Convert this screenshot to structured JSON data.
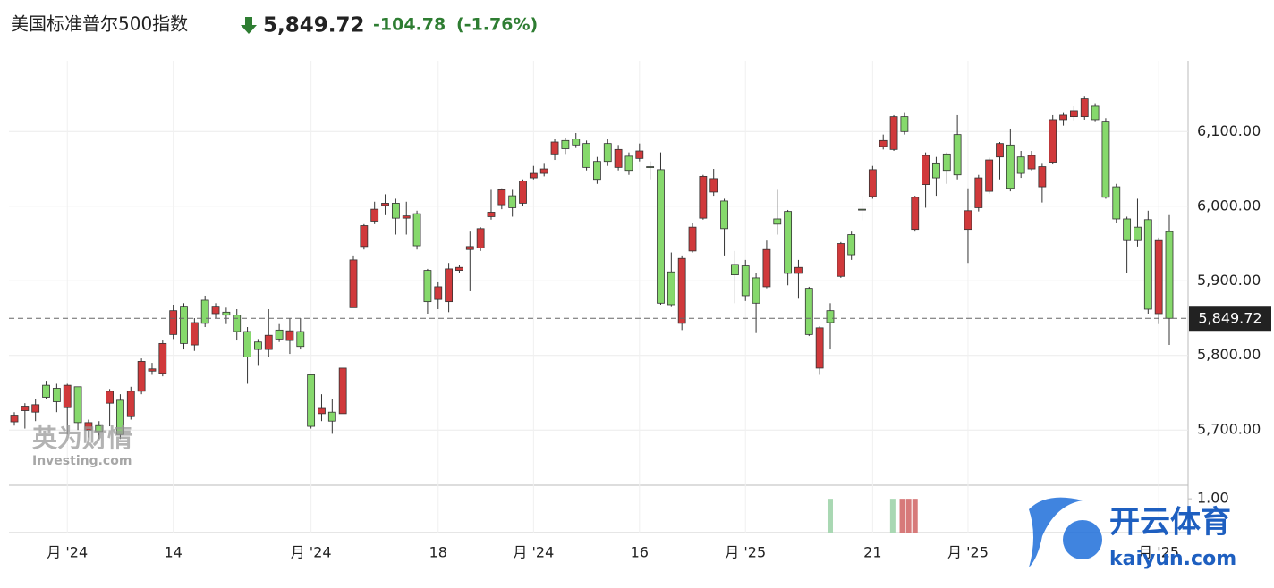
{
  "chart_data": [
    {
      "type": "candlestick",
      "title": "美国标准普尔500指数",
      "last": {
        "value": 5849.72,
        "label": "5,849.72"
      },
      "change": -104.78,
      "change_percent": {
        "value": -1.76,
        "label": "(-1.76%)"
      },
      "up_color": "#d0393b",
      "down_color": "#86d96c",
      "ylim": [
        5626,
        6195
      ],
      "yticks": [
        {
          "value": 5700,
          "label": "5,700.00"
        },
        {
          "value": 5800,
          "label": "5,800.00"
        },
        {
          "value": 5900,
          "label": "5,900.00"
        },
        {
          "value": 6000,
          "label": "6,000.00"
        },
        {
          "value": 6100,
          "label": "6,100.00"
        }
      ],
      "xticks": [
        {
          "value": 5,
          "label": "月 '24"
        },
        {
          "value": 15,
          "label": "14"
        },
        {
          "value": 28,
          "label": "月 '24"
        },
        {
          "value": 40,
          "label": "18"
        },
        {
          "value": 49,
          "label": "月 '24"
        },
        {
          "value": 59,
          "label": "16"
        },
        {
          "value": 69,
          "label": "月 '25"
        },
        {
          "value": 81,
          "label": "21"
        },
        {
          "value": 90,
          "label": "月 '25"
        },
        {
          "value": 108,
          "label": "月 '25"
        }
      ],
      "grid": true,
      "open": [
        5711,
        5726,
        5724,
        5760,
        5756,
        5730,
        5758,
        5700,
        5706,
        5736,
        5740,
        5718,
        5752,
        5779,
        5776,
        5828,
        5866,
        5814,
        5874,
        5856,
        5858,
        5854,
        5832,
        5818,
        5808,
        5834,
        5820,
        5832,
        5774,
        5722,
        5724,
        5722,
        5864,
        5946,
        5980,
        6001,
        6004,
        5984,
        5990,
        5914,
        5875,
        5872,
        5914,
        5942,
        5944,
        5986,
        6002,
        6014,
        6004,
        6038,
        6044,
        6070,
        6088,
        6090,
        6084,
        6060,
        6084,
        6052,
        6067,
        6064,
        6053,
        6049,
        5912,
        5843,
        5940,
        5984,
        6019,
        6007,
        5922,
        5920,
        5904,
        5892,
        5983,
        5993,
        5910,
        5890,
        5783,
        5860,
        5906,
        5962,
        5996,
        6013,
        6080,
        6076,
        6120,
        5969,
        6029,
        6058,
        6070,
        6096,
        5969,
        5998,
        6020,
        6066,
        6082,
        6066,
        6050,
        6026,
        6059,
        6116,
        6120,
        6120,
        6134,
        6114,
        6026,
        5983,
        5972,
        5982,
        5856,
        5966
      ],
      "high": [
        5724,
        5736,
        5742,
        5766,
        5762,
        5762,
        5758,
        5714,
        5712,
        5755,
        5748,
        5758,
        5796,
        5790,
        5820,
        5868,
        5870,
        5850,
        5880,
        5870,
        5864,
        5862,
        5838,
        5822,
        5862,
        5842,
        5850,
        5850,
        5774,
        5748,
        5741,
        5783,
        5934,
        5976,
        6006,
        6016,
        6010,
        6006,
        5994,
        5916,
        5898,
        5924,
        5921,
        5966,
        5972,
        6022,
        6024,
        6022,
        6036,
        6054,
        6058,
        6090,
        6092,
        6098,
        6088,
        6066,
        6090,
        6082,
        6072,
        6084,
        6060,
        6072,
        5938,
        5934,
        5978,
        6042,
        6050,
        6010,
        5940,
        5928,
        5910,
        5954,
        6022,
        5995,
        5928,
        5892,
        5839,
        5870,
        5952,
        5966,
        6014,
        6054,
        6096,
        6122,
        6126,
        6014,
        6072,
        6066,
        6072,
        6122,
        6024,
        6042,
        6065,
        6086,
        6104,
        6074,
        6074,
        6058,
        6122,
        6126,
        6134,
        6148,
        6138,
        6118,
        6030,
        5986,
        6010,
        5994,
        5958,
        5988
      ],
      "low": [
        5706,
        5702,
        5712,
        5742,
        5724,
        5694,
        5700,
        5690,
        5688,
        5705,
        5688,
        5714,
        5748,
        5774,
        5772,
        5822,
        5808,
        5806,
        5838,
        5850,
        5842,
        5820,
        5762,
        5786,
        5798,
        5818,
        5802,
        5808,
        5702,
        5712,
        5695,
        5722,
        5864,
        5942,
        5976,
        5988,
        5962,
        5962,
        5942,
        5856,
        5862,
        5858,
        5910,
        5886,
        5940,
        5982,
        5996,
        5986,
        6000,
        6036,
        6040,
        6062,
        6070,
        6078,
        6048,
        6030,
        6054,
        6048,
        6042,
        6060,
        6036,
        5868,
        5866,
        5834,
        5938,
        5982,
        6014,
        5934,
        5870,
        5873,
        5830,
        5890,
        5962,
        5894,
        5876,
        5826,
        5774,
        5808,
        5904,
        5928,
        5981,
        6010,
        6076,
        6074,
        6096,
        5966,
        5998,
        6014,
        6030,
        6036,
        5924,
        5993,
        6017,
        6036,
        6020,
        6038,
        6048,
        6005,
        6056,
        6108,
        6115,
        6116,
        6114,
        6010,
        5978,
        5910,
        5946,
        5856,
        5842,
        5814
      ],
      "close": [
        5720,
        5732,
        5734,
        5744,
        5738,
        5760,
        5710,
        5710,
        5698,
        5752,
        5694,
        5752,
        5792,
        5782,
        5816,
        5860,
        5816,
        5844,
        5843,
        5866,
        5854,
        5832,
        5798,
        5808,
        5827,
        5822,
        5833,
        5812,
        5705,
        5729,
        5712,
        5783,
        5928,
        5974,
        5996,
        6004,
        5984,
        5987,
        5947,
        5872,
        5892,
        5916,
        5918,
        5946,
        5970,
        5992,
        6022,
        5998,
        6034,
        6044,
        6050,
        6086,
        6077,
        6082,
        6052,
        6036,
        6060,
        6076,
        6048,
        6074,
        6052,
        5870,
        5868,
        5930,
        5972,
        6040,
        6037,
        5970,
        5908,
        5880,
        5870,
        5942,
        5976,
        5910,
        5918,
        5828,
        5837,
        5844,
        5950,
        5935,
        5995,
        6049,
        6088,
        6120,
        6100,
        6012,
        6068,
        6038,
        6048,
        6042,
        5994,
        6038,
        6062,
        6084,
        6024,
        6044,
        6068,
        6053,
        6116,
        6122,
        6128,
        6144,
        6116,
        6012,
        5983,
        5954,
        5954,
        5862,
        5954,
        5849.72
      ]
    },
    {
      "type": "bar",
      "x": [
        77,
        82.9,
        83.8,
        84.4,
        85
      ],
      "values": [
        1,
        1,
        1,
        1,
        1
      ],
      "colors": [
        "#a9d8b3",
        "#a9d8b3",
        "#d77a7a",
        "#d77a7a",
        "#d77a7a"
      ],
      "ylim": [
        0,
        1.4
      ],
      "yticks": [
        {
          "value": 1,
          "label": "1.00"
        }
      ]
    }
  ],
  "watermarks": [
    "英为财情",
    "Investing.com",
    "开云体育",
    "kaiyun.com"
  ]
}
